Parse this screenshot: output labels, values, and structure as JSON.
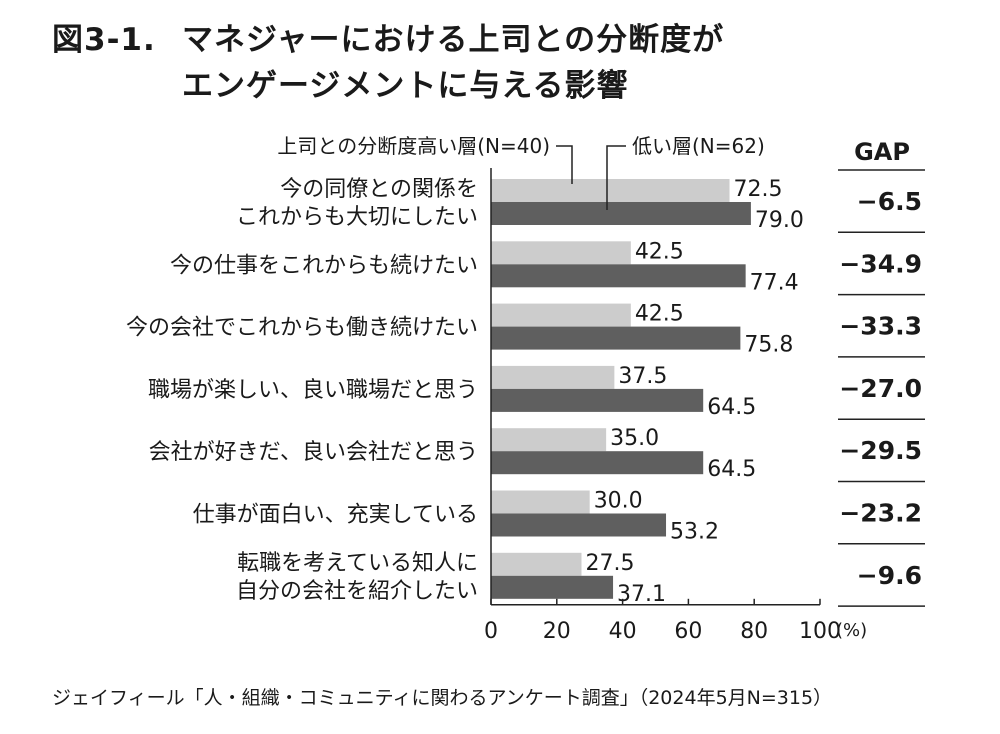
{
  "title": {
    "number": "図3-1.",
    "line1": "マネジャーにおける上司との分断度が",
    "line2": "エンゲージメントに与える影響"
  },
  "source": "ジェイフィール「人・組織・コミュニティに関わるアンケート調査」（2024年5月N=315）",
  "chart_data": {
    "type": "bar",
    "orientation": "horizontal",
    "categories": [
      [
        "今の同僚との関係を",
        "これからも大切にしたい"
      ],
      [
        "今の仕事をこれからも続けたい"
      ],
      [
        "今の会社でこれからも働き続けたい"
      ],
      [
        "職場が楽しい、良い職場だと思う"
      ],
      [
        "会社が好きだ、良い会社だと思う"
      ],
      [
        "仕事が面白い、充実している"
      ],
      [
        "転職を考えている知人に",
        "自分の会社を紹介したい"
      ]
    ],
    "series": [
      {
        "name": "上司との分断度高い層(N=40)",
        "color": "#cccccc",
        "values": [
          72.5,
          42.5,
          42.5,
          37.5,
          35.0,
          30.0,
          27.5
        ],
        "labels": [
          "72.5",
          "42.5",
          "42.5",
          "37.5",
          "35.0",
          "30.0",
          "27.5"
        ]
      },
      {
        "name": "低い層(N=62)",
        "color": "#5f5f5f",
        "values": [
          79.0,
          77.4,
          75.8,
          64.5,
          64.5,
          53.2,
          37.1
        ],
        "labels": [
          "79.0",
          "77.4",
          "75.8",
          "64.5",
          "64.5",
          "53.2",
          "37.1"
        ]
      }
    ],
    "gap": {
      "header": "GAP",
      "values": [
        "−6.5",
        "−34.9",
        "−33.3",
        "−27.0",
        "−29.5",
        "−23.2",
        "−9.6"
      ]
    },
    "xlim": [
      0,
      100
    ],
    "xticks": [
      "0",
      "20",
      "40",
      "60",
      "80",
      "100"
    ],
    "xunit": "(%)",
    "legend_placement": "top"
  }
}
